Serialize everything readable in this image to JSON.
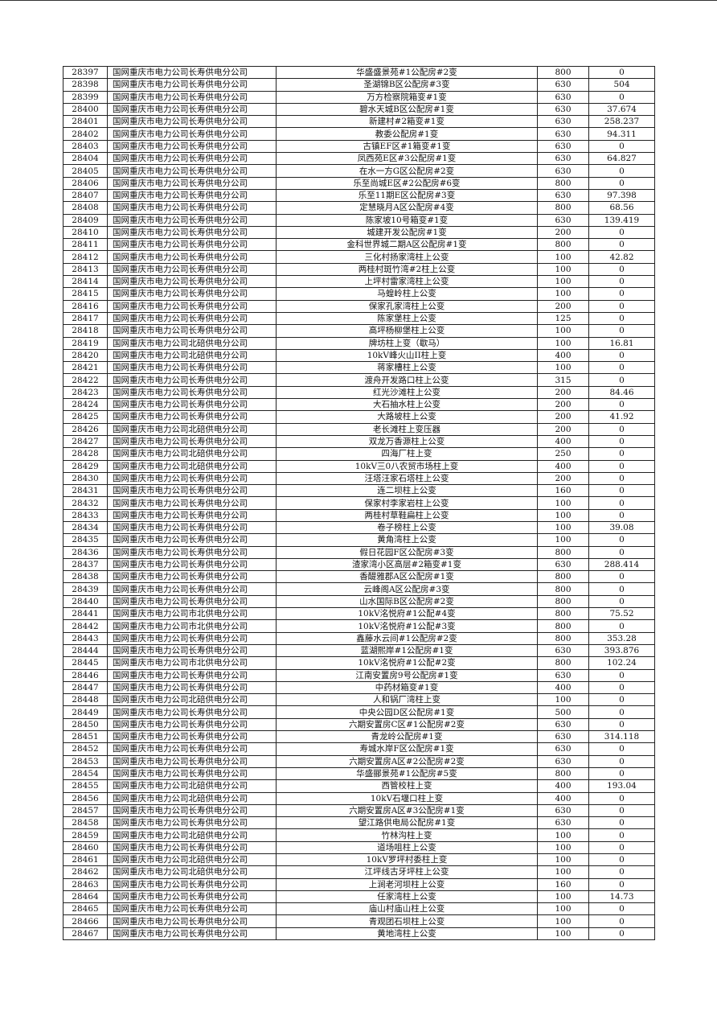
{
  "table": {
    "rows": [
      [
        "28397",
        "国网重庆市电力公司长寿供电分公司",
        "华盛盛景苑#1公配房#2变",
        "800",
        "0"
      ],
      [
        "28398",
        "国网重庆市电力公司长寿供电分公司",
        "圣湖锦B区公配房#3变",
        "630",
        "504"
      ],
      [
        "28399",
        "国网重庆市电力公司长寿供电分公司",
        "万方检察院箱变#1变",
        "630",
        "0"
      ],
      [
        "28400",
        "国网重庆市电力公司长寿供电分公司",
        "碧水天城B区公配房#1变",
        "630",
        "37.674"
      ],
      [
        "28401",
        "国网重庆市电力公司长寿供电分公司",
        "新建村#2箱变#1变",
        "630",
        "258.237"
      ],
      [
        "28402",
        "国网重庆市电力公司长寿供电分公司",
        "教委公配房#1变",
        "630",
        "94.311"
      ],
      [
        "28403",
        "国网重庆市电力公司长寿供电分公司",
        "古镇EF区#1箱变#1变",
        "630",
        "0"
      ],
      [
        "28404",
        "国网重庆市电力公司长寿供电分公司",
        "凤西苑E区#3公配房#1变",
        "630",
        "64.827"
      ],
      [
        "28405",
        "国网重庆市电力公司长寿供电分公司",
        "在水一方G区公配房#2变",
        "630",
        "0"
      ],
      [
        "28406",
        "国网重庆市电力公司长寿供电分公司",
        "乐至尚城E区#2公配房#6变",
        "800",
        "0"
      ],
      [
        "28407",
        "国网重庆市电力公司长寿供电分公司",
        "乐至11期E区公配房#3变",
        "630",
        "97.398"
      ],
      [
        "28408",
        "国网重庆市电力公司长寿供电分公司",
        "定慧晓月A区公配房#4变",
        "800",
        "68.56"
      ],
      [
        "28409",
        "国网重庆市电力公司长寿供电分公司",
        "陈家坡10号箱变#1变",
        "630",
        "139.419"
      ],
      [
        "28410",
        "国网重庆市电力公司长寿供电分公司",
        "城建开发公配房#1变",
        "200",
        "0"
      ],
      [
        "28411",
        "国网重庆市电力公司长寿供电分公司",
        "金科世界城二期A区公配房#1变",
        "800",
        "0"
      ],
      [
        "28412",
        "国网重庆市电力公司长寿供电分公司",
        "三化村扬家湾柱上公变",
        "100",
        "42.82"
      ],
      [
        "28413",
        "国网重庆市电力公司长寿供电分公司",
        "两桂村斑竹湾#2柱上公变",
        "100",
        "0"
      ],
      [
        "28414",
        "国网重庆市电力公司长寿供电分公司",
        "上坪村雷家湾柱上公变",
        "100",
        "0"
      ],
      [
        "28415",
        "国网重庆市电力公司长寿供电分公司",
        "马蝗岭柱上公变",
        "100",
        "0"
      ],
      [
        "28416",
        "国网重庆市电力公司长寿供电分公司",
        "保家孔家湾柱上公变",
        "200",
        "0"
      ],
      [
        "28417",
        "国网重庆市电力公司长寿供电分公司",
        "陈家堡柱上公变",
        "125",
        "0"
      ],
      [
        "28418",
        "国网重庆市电力公司长寿供电分公司",
        "高坪杨柳堡柱上公变",
        "100",
        "0"
      ],
      [
        "28419",
        "国网重庆市电力公司北碚供电分公司",
        "牌坊柱上变（歇马）",
        "100",
        "16.81"
      ],
      [
        "28420",
        "国网重庆市电力公司北碚供电分公司",
        "10kV峰火山II柱上变",
        "400",
        "0"
      ],
      [
        "28421",
        "国网重庆市电力公司长寿供电分公司",
        "蒋家槽柱上公变",
        "100",
        "0"
      ],
      [
        "28422",
        "国网重庆市电力公司长寿供电分公司",
        "渡舟开发路口柱上公变",
        "315",
        "0"
      ],
      [
        "28423",
        "国网重庆市电力公司长寿供电分公司",
        "红光沙滩柱上公变",
        "200",
        "84.46"
      ],
      [
        "28424",
        "国网重庆市电力公司长寿供电分公司",
        "大石抽水柱上公变",
        "200",
        "0"
      ],
      [
        "28425",
        "国网重庆市电力公司长寿供电分公司",
        "大路坡柱上公变",
        "200",
        "41.92"
      ],
      [
        "28426",
        "国网重庆市电力公司北碚供电分公司",
        "老长滩柱上变压器",
        "200",
        "0"
      ],
      [
        "28427",
        "国网重庆市电力公司长寿供电分公司",
        "双龙万香源柱上公变",
        "400",
        "0"
      ],
      [
        "28428",
        "国网重庆市电力公司北碚供电分公司",
        "四海厂柱上变",
        "250",
        "0"
      ],
      [
        "28429",
        "国网重庆市电力公司北碚供电分公司",
        "10kV三0八农贸市场柱上变",
        "400",
        "0"
      ],
      [
        "28430",
        "国网重庆市电力公司长寿供电分公司",
        "汪塔汪家石塔柱上公变",
        "200",
        "0"
      ],
      [
        "28431",
        "国网重庆市电力公司长寿供电分公司",
        "连二坝柱上公变",
        "160",
        "0"
      ],
      [
        "28432",
        "国网重庆市电力公司长寿供电分公司",
        "保家村李家岩柱上公变",
        "100",
        "0"
      ],
      [
        "28433",
        "国网重庆市电力公司长寿供电分公司",
        "两桂村草鞋扁柱上公变",
        "100",
        "0"
      ],
      [
        "28434",
        "国网重庆市电力公司长寿供电分公司",
        "卷子榜柱上公变",
        "100",
        "39.08"
      ],
      [
        "28435",
        "国网重庆市电力公司长寿供电分公司",
        "黄角湾柱上公变",
        "100",
        "0"
      ],
      [
        "28436",
        "国网重庆市电力公司长寿供电分公司",
        "假日花园F区公配房#3变",
        "800",
        "0"
      ],
      [
        "28437",
        "国网重庆市电力公司长寿供电分公司",
        "渣家湾小区高层#2箱变#1变",
        "630",
        "288.414"
      ],
      [
        "28438",
        "国网重庆市电力公司长寿供电分公司",
        "香醍雅郡A区公配房#1变",
        "800",
        "0"
      ],
      [
        "28439",
        "国网重庆市电力公司长寿供电分公司",
        "云峰阁A区公配房#3变",
        "800",
        "0"
      ],
      [
        "28440",
        "国网重庆市电力公司长寿供电分公司",
        "山水国际B区公配房#2变",
        "800",
        "0"
      ],
      [
        "28441",
        "国网重庆市电力公司市北供电分公司",
        "10kV洺悦府#1公配#4变",
        "800",
        "75.52"
      ],
      [
        "28442",
        "国网重庆市电力公司市北供电分公司",
        "10kV洺悦府#1公配#3变",
        "800",
        "0"
      ],
      [
        "28443",
        "国网重庆市电力公司长寿供电分公司",
        "鑫藤水云间#1公配房#2变",
        "800",
        "353.28"
      ],
      [
        "28444",
        "国网重庆市电力公司长寿供电分公司",
        "蓝湖熙岸#1公配房#1变",
        "630",
        "393.876"
      ],
      [
        "28445",
        "国网重庆市电力公司市北供电分公司",
        "10kV洺悦府#1公配#2变",
        "800",
        "102.24"
      ],
      [
        "28446",
        "国网重庆市电力公司长寿供电分公司",
        "江南安置房9号公配房#1变",
        "630",
        "0"
      ],
      [
        "28447",
        "国网重庆市电力公司长寿供电分公司",
        "中药材箱变#1变",
        "400",
        "0"
      ],
      [
        "28448",
        "国网重庆市电力公司北碚供电分公司",
        "人和锅厂湾柱上变",
        "100",
        "0"
      ],
      [
        "28449",
        "国网重庆市电力公司长寿供电分公司",
        "中央公园D区公配房#1变",
        "500",
        "0"
      ],
      [
        "28450",
        "国网重庆市电力公司长寿供电分公司",
        "六期安置房C区#1公配房#2变",
        "630",
        "0"
      ],
      [
        "28451",
        "国网重庆市电力公司长寿供电分公司",
        "青龙岭公配房#1变",
        "630",
        "314.118"
      ],
      [
        "28452",
        "国网重庆市电力公司长寿供电分公司",
        "寿城水岸F区公配房#1变",
        "630",
        "0"
      ],
      [
        "28453",
        "国网重庆市电力公司长寿供电分公司",
        "六期安置房A区#2公配房#2变",
        "630",
        "0"
      ],
      [
        "28454",
        "国网重庆市电力公司长寿供电分公司",
        "华盛郦景苑#1公配房#5变",
        "800",
        "0"
      ],
      [
        "28455",
        "国网重庆市电力公司北碚供电分公司",
        "西管校柱上变",
        "400",
        "193.04"
      ],
      [
        "28456",
        "国网重庆市电力公司北碚供电分公司",
        "10kV石堰口柱上变",
        "400",
        "0"
      ],
      [
        "28457",
        "国网重庆市电力公司长寿供电分公司",
        "六期安置房A区#3公配房#1变",
        "630",
        "0"
      ],
      [
        "28458",
        "国网重庆市电力公司长寿供电分公司",
        "望江路供电局公配房#1变",
        "630",
        "0"
      ],
      [
        "28459",
        "国网重庆市电力公司北碚供电分公司",
        "竹林沟柱上变",
        "100",
        "0"
      ],
      [
        "28460",
        "国网重庆市电力公司长寿供电分公司",
        "道场咀柱上公变",
        "100",
        "0"
      ],
      [
        "28461",
        "国网重庆市电力公司北碚供电分公司",
        "10kV罗坪村委柱上变",
        "100",
        "0"
      ],
      [
        "28462",
        "国网重庆市电力公司北碚供电分公司",
        "江坪线古牙坪柱上公变",
        "100",
        "0"
      ],
      [
        "28463",
        "国网重庆市电力公司长寿供电分公司",
        "上涧老河坝柱上公变",
        "160",
        "0"
      ],
      [
        "28464",
        "国网重庆市电力公司长寿供电分公司",
        "任家湾柱上公变",
        "100",
        "14.73"
      ],
      [
        "28465",
        "国网重庆市电力公司长寿供电分公司",
        "庙山村庙山柱上公变",
        "100",
        "0"
      ],
      [
        "28466",
        "国网重庆市电力公司长寿供电分公司",
        "青观团石坝柱上公变",
        "100",
        "0"
      ],
      [
        "28467",
        "国网重庆市电力公司长寿供电分公司",
        "黄地湾柱上公变",
        "100",
        "0"
      ]
    ]
  }
}
